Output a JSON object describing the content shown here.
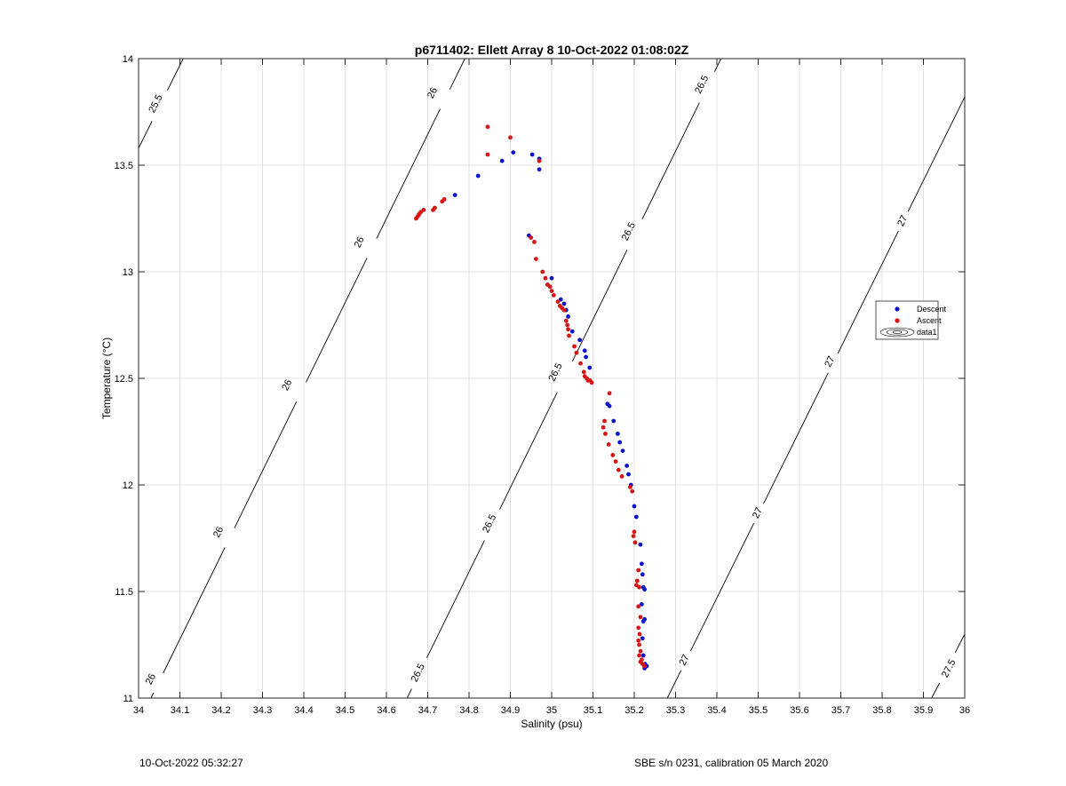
{
  "chart_data": {
    "type": "scatter",
    "title": "p6711402: Ellett Array 8 10-Oct-2022 01:08:02Z",
    "xlabel": "Salinity (psu)",
    "ylabel": "Temperature (°C)",
    "xlim": [
      34,
      36
    ],
    "ylim": [
      11,
      14
    ],
    "x_ticks": [
      34,
      34.1,
      34.2,
      34.3,
      34.4,
      34.5,
      34.6,
      34.7,
      34.8,
      34.9,
      35,
      35.1,
      35.2,
      35.3,
      35.4,
      35.5,
      35.6,
      35.7,
      35.8,
      35.9,
      36
    ],
    "x_tick_labels": [
      "34",
      "34.1",
      "34.2",
      "34.3",
      "34.4",
      "34.5",
      "34.6",
      "34.7",
      "34.8",
      "34.9",
      "35",
      "35.1",
      "35.2",
      "35.3",
      "35.4",
      "35.5",
      "35.6",
      "35.7",
      "35.8",
      "35.9",
      "36"
    ],
    "y_ticks": [
      11,
      11.5,
      12,
      12.5,
      13,
      13.5,
      14
    ],
    "y_tick_labels": [
      "11",
      "11.5",
      "12",
      "12.5",
      "13",
      "13.5",
      "14"
    ],
    "grid": true,
    "legend": {
      "position": "right",
      "entries": [
        "Descent",
        "Ascent",
        "data1"
      ]
    },
    "colors": {
      "descent": "#0a14c8",
      "ascent": "#d81414",
      "contour": "#000000",
      "grid": "#e3e3e3"
    },
    "series": [
      {
        "name": "Descent",
        "points": [
          [
            34.766,
            13.36
          ],
          [
            34.822,
            13.45
          ],
          [
            34.88,
            13.52
          ],
          [
            34.907,
            13.56
          ],
          [
            34.953,
            13.55
          ],
          [
            34.97,
            13.48
          ],
          [
            34.97,
            13.53
          ],
          [
            34.945,
            13.17
          ],
          [
            35.0,
            12.97
          ],
          [
            35.022,
            12.87
          ],
          [
            35.03,
            12.85
          ],
          [
            35.035,
            12.82
          ],
          [
            35.04,
            12.79
          ],
          [
            35.05,
            12.72
          ],
          [
            35.068,
            12.68
          ],
          [
            35.08,
            12.63
          ],
          [
            35.083,
            12.6
          ],
          [
            35.092,
            12.55
          ],
          [
            35.135,
            12.38
          ],
          [
            35.14,
            12.37
          ],
          [
            35.15,
            12.3
          ],
          [
            35.16,
            12.24
          ],
          [
            35.165,
            12.2
          ],
          [
            35.172,
            12.16
          ],
          [
            35.182,
            12.09
          ],
          [
            35.186,
            12.05
          ],
          [
            35.192,
            12.0
          ],
          [
            35.2,
            11.9
          ],
          [
            35.205,
            11.85
          ],
          [
            35.215,
            11.72
          ],
          [
            35.218,
            11.63
          ],
          [
            35.22,
            11.58
          ],
          [
            35.222,
            11.52
          ],
          [
            35.225,
            11.51
          ],
          [
            35.218,
            11.44
          ],
          [
            35.222,
            11.36
          ],
          [
            35.225,
            11.37
          ],
          [
            35.22,
            11.28
          ],
          [
            35.222,
            11.2
          ],
          [
            35.226,
            11.16
          ],
          [
            35.23,
            11.15
          ],
          [
            35.225,
            11.14
          ]
        ]
      },
      {
        "name": "Ascent",
        "points": [
          [
            34.672,
            13.25
          ],
          [
            34.676,
            13.26
          ],
          [
            34.679,
            13.27
          ],
          [
            34.683,
            13.28
          ],
          [
            34.69,
            13.29
          ],
          [
            34.713,
            13.29
          ],
          [
            34.717,
            13.3
          ],
          [
            34.735,
            13.33
          ],
          [
            34.74,
            13.34
          ],
          [
            34.845,
            13.68
          ],
          [
            34.845,
            13.55
          ],
          [
            34.9,
            13.63
          ],
          [
            34.97,
            13.52
          ],
          [
            34.95,
            13.16
          ],
          [
            34.958,
            13.14
          ],
          [
            34.962,
            13.06
          ],
          [
            34.978,
            13.0
          ],
          [
            34.985,
            12.97
          ],
          [
            34.99,
            12.94
          ],
          [
            34.996,
            12.93
          ],
          [
            35.0,
            12.91
          ],
          [
            35.005,
            12.89
          ],
          [
            35.015,
            12.86
          ],
          [
            35.02,
            12.84
          ],
          [
            35.025,
            12.83
          ],
          [
            35.03,
            12.82
          ],
          [
            35.035,
            12.77
          ],
          [
            35.038,
            12.75
          ],
          [
            35.04,
            12.73
          ],
          [
            35.042,
            12.7
          ],
          [
            35.055,
            12.65
          ],
          [
            35.06,
            12.62
          ],
          [
            35.07,
            12.57
          ],
          [
            35.078,
            12.53
          ],
          [
            35.08,
            12.51
          ],
          [
            35.085,
            12.5
          ],
          [
            35.088,
            12.49
          ],
          [
            35.093,
            12.49
          ],
          [
            35.097,
            12.48
          ],
          [
            35.14,
            12.43
          ],
          [
            35.128,
            12.3
          ],
          [
            35.125,
            12.27
          ],
          [
            35.13,
            12.24
          ],
          [
            35.138,
            12.19
          ],
          [
            35.148,
            12.14
          ],
          [
            35.155,
            12.11
          ],
          [
            35.162,
            12.07
          ],
          [
            35.17,
            12.04
          ],
          [
            35.19,
            11.99
          ],
          [
            35.195,
            11.97
          ],
          [
            35.2,
            11.78
          ],
          [
            35.198,
            11.76
          ],
          [
            35.202,
            11.73
          ],
          [
            35.21,
            11.6
          ],
          [
            35.207,
            11.55
          ],
          [
            35.205,
            11.53
          ],
          [
            35.212,
            11.52
          ],
          [
            35.21,
            11.43
          ],
          [
            35.215,
            11.38
          ],
          [
            35.21,
            11.33
          ],
          [
            35.213,
            11.3
          ],
          [
            35.21,
            11.27
          ],
          [
            35.212,
            11.25
          ],
          [
            35.215,
            11.22
          ],
          [
            35.212,
            11.2
          ],
          [
            35.218,
            11.18
          ],
          [
            35.215,
            11.17
          ],
          [
            35.22,
            11.16
          ],
          [
            35.224,
            11.15
          ]
        ]
      }
    ],
    "contours": [
      {
        "level": "25.5",
        "line": [
          [
            34.0,
            13.58
          ],
          [
            34.108,
            14.0
          ]
        ],
        "labels": [
          {
            "text": "25.5",
            "x": 34.04,
            "y": 13.79
          }
        ]
      },
      {
        "level": "26",
        "line": [
          [
            34.03,
            11.0
          ],
          [
            34.79,
            14.0
          ]
        ],
        "labels": [
          {
            "text": "26",
            "x": 34.028,
            "y": 11.09
          },
          {
            "text": "26",
            "x": 34.192,
            "y": 11.78
          },
          {
            "text": "26",
            "x": 34.358,
            "y": 12.47
          },
          {
            "text": "26",
            "x": 34.533,
            "y": 13.14
          },
          {
            "text": "26",
            "x": 34.71,
            "y": 13.84
          }
        ]
      },
      {
        "level": "26.5",
        "line": [
          [
            34.65,
            11.0
          ],
          [
            35.41,
            14.0
          ]
        ],
        "labels": [
          {
            "text": "26.5",
            "x": 34.675,
            "y": 11.12
          },
          {
            "text": "26.5",
            "x": 34.848,
            "y": 11.82
          },
          {
            "text": "26.5",
            "x": 35.008,
            "y": 12.53
          },
          {
            "text": "26.5",
            "x": 35.185,
            "y": 13.19
          },
          {
            "text": "26.5",
            "x": 35.362,
            "y": 13.88
          }
        ]
      },
      {
        "level": "27",
        "line": [
          [
            35.28,
            11.0
          ],
          [
            36.0,
            13.82
          ]
        ],
        "labels": [
          {
            "text": "27",
            "x": 35.32,
            "y": 11.18
          },
          {
            "text": "27",
            "x": 35.497,
            "y": 11.87
          },
          {
            "text": "27",
            "x": 35.672,
            "y": 12.58
          },
          {
            "text": "27",
            "x": 35.848,
            "y": 13.24
          }
        ]
      },
      {
        "level": "27.5",
        "line": [
          [
            35.92,
            11.0
          ],
          [
            36.0,
            11.3
          ]
        ],
        "labels": [
          {
            "text": "27.5",
            "x": 35.96,
            "y": 11.14
          }
        ]
      }
    ]
  },
  "footer": {
    "left": "10-Oct-2022 05:32:27",
    "right": "SBE s/n 0231, calibration 05 March 2020"
  }
}
